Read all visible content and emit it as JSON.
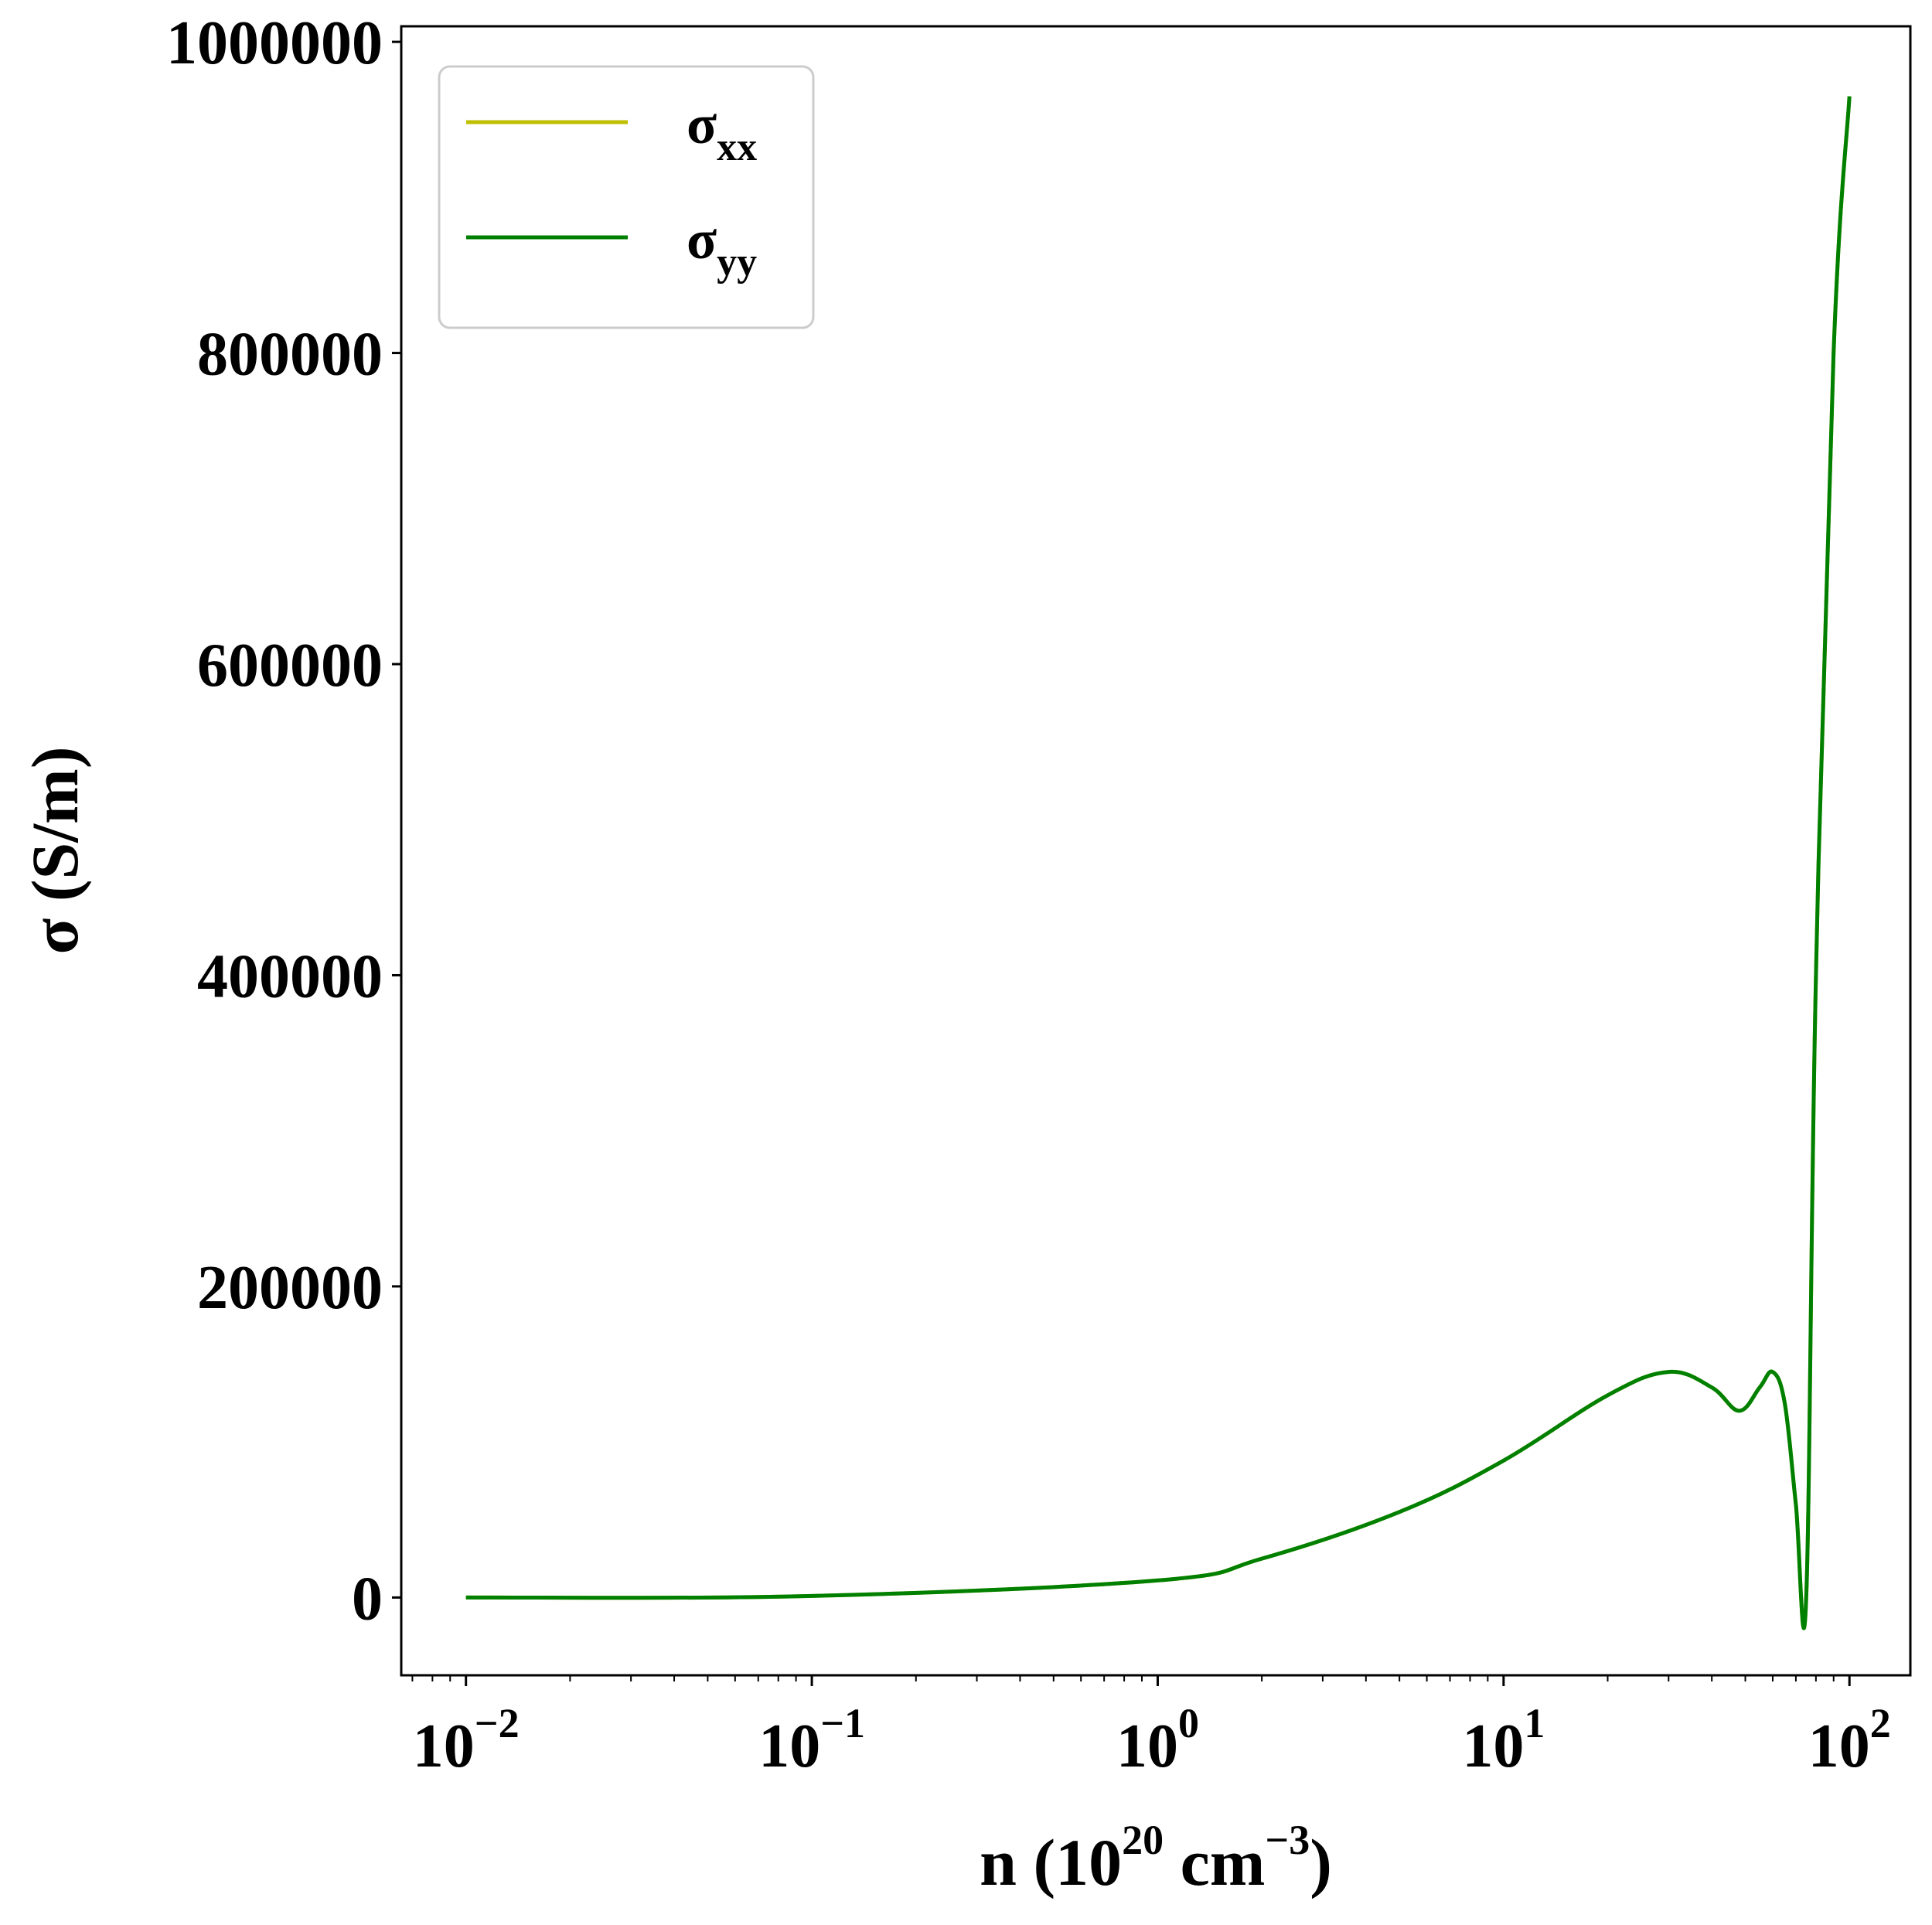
{
  "chart_data": {
    "type": "line",
    "xscale": "log",
    "xlabel": {
      "main": "n (10",
      "sup": "20",
      "mid": " cm",
      "sup2": "−3",
      "end": ")"
    },
    "ylabel": "σ (S/m)",
    "xlim": [
      0.0065,
      150
    ],
    "ylim": [
      -50000,
      1010000
    ],
    "x_ticks": [
      {
        "value": 0.01,
        "base": "10",
        "exp": "−2"
      },
      {
        "value": 0.1,
        "base": "10",
        "exp": "−1"
      },
      {
        "value": 1,
        "base": "10",
        "exp": "0"
      },
      {
        "value": 10,
        "base": "10",
        "exp": "1"
      },
      {
        "value": 100,
        "base": "10",
        "exp": "2"
      }
    ],
    "y_ticks": [
      {
        "value": 0,
        "label": "0"
      },
      {
        "value": 200000,
        "label": "200000"
      },
      {
        "value": 400000,
        "label": "400000"
      },
      {
        "value": 600000,
        "label": "600000"
      },
      {
        "value": 800000,
        "label": "800000"
      },
      {
        "value": 1000000,
        "label": "1000000"
      }
    ],
    "legend": {
      "placement": "top-left"
    },
    "series": [
      {
        "name": {
          "base": "σ",
          "sub": "xx"
        },
        "color": "#bfbf00",
        "x": [
          0.01,
          0.1,
          1,
          2,
          5,
          10,
          20,
          30,
          40,
          48,
          55,
          60,
          65,
          70,
          75,
          80,
          90,
          100
        ],
        "y": [
          0,
          1000,
          11000,
          25000,
          55000,
          88000,
          130000,
          145000,
          135000,
          120000,
          135000,
          145000,
          125000,
          60000,
          0,
          400000,
          800000,
          965000
        ]
      },
      {
        "name": {
          "base": "σ",
          "sub": "yy"
        },
        "color": "#008000",
        "x": [
          0.01,
          0.1,
          1,
          2,
          5,
          10,
          20,
          30,
          40,
          48,
          55,
          60,
          65,
          70,
          75,
          80,
          90,
          100
        ],
        "y": [
          0,
          1000,
          11000,
          25000,
          55000,
          88000,
          130000,
          145000,
          135000,
          120000,
          135000,
          145000,
          125000,
          60000,
          0,
          400000,
          800000,
          965000
        ]
      }
    ]
  }
}
